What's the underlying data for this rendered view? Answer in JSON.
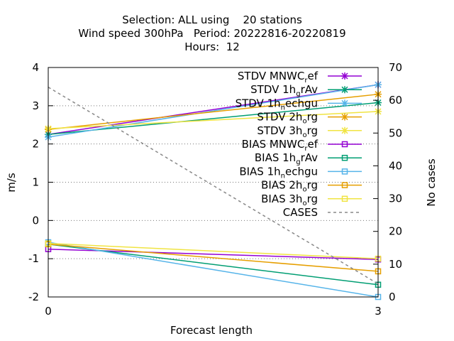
{
  "chart_data": {
    "type": "line",
    "title_lines": [
      "Selection: ALL using    20 stations",
      "Wind speed 300hPa   Period: 20222816-20220819",
      "Hours:  12"
    ],
    "xlabel": "Forecast length",
    "ylabel": "m/s",
    "y2label": "No cases",
    "xlim": [
      0,
      3
    ],
    "ylim": [
      -2,
      4
    ],
    "y2lim": [
      0,
      70
    ],
    "x_ticks": [
      0,
      3
    ],
    "y_ticks": [
      -2,
      -1,
      0,
      1,
      2,
      3,
      4
    ],
    "y2_ticks": [
      0,
      10,
      20,
      30,
      40,
      50,
      60,
      70
    ],
    "grid": "horizontal dotted",
    "legend_position": "top-right inside",
    "series": [
      {
        "name": "STDV MNWC",
        "name_sub": "r",
        "name_tail": "ef",
        "color": "#9400d3",
        "marker": "star",
        "x": [
          0,
          3
        ],
        "y": [
          2.25,
          3.55
        ]
      },
      {
        "name": "STDV 1h",
        "name_sub": "g",
        "name_tail": "rAv",
        "color": "#009e73",
        "marker": "star",
        "x": [
          0,
          3
        ],
        "y": [
          2.25,
          3.08
        ]
      },
      {
        "name": "STDV 1h",
        "name_sub": "n",
        "name_tail": "echgu",
        "color": "#56b4e9",
        "marker": "star",
        "x": [
          0,
          3
        ],
        "y": [
          2.18,
          3.55
        ]
      },
      {
        "name": "STDV 2h",
        "name_sub": "o",
        "name_tail": "rg",
        "color": "#e69f00",
        "marker": "star",
        "x": [
          0,
          3
        ],
        "y": [
          2.38,
          3.3
        ]
      },
      {
        "name": "STDV 3h",
        "name_sub": "o",
        "name_tail": "rg",
        "color": "#f0e442",
        "marker": "star",
        "x": [
          0,
          3
        ],
        "y": [
          2.4,
          2.85
        ]
      },
      {
        "name": "BIAS MNWC",
        "name_sub": "r",
        "name_tail": "ef",
        "color": "#9400d3",
        "marker": "square",
        "x": [
          0,
          3
        ],
        "y": [
          -0.75,
          -1.02
        ]
      },
      {
        "name": "BIAS 1h",
        "name_sub": "g",
        "name_tail": "rAv",
        "color": "#009e73",
        "marker": "square",
        "x": [
          0,
          3
        ],
        "y": [
          -0.62,
          -1.68
        ]
      },
      {
        "name": "BIAS 1h",
        "name_sub": "n",
        "name_tail": "echgu",
        "color": "#56b4e9",
        "marker": "square",
        "x": [
          0,
          3
        ],
        "y": [
          -0.57,
          -2.0
        ]
      },
      {
        "name": "BIAS 2h",
        "name_sub": "o",
        "name_tail": "rg",
        "color": "#e69f00",
        "marker": "square",
        "x": [
          0,
          3
        ],
        "y": [
          -0.62,
          -1.33
        ]
      },
      {
        "name": "BIAS 3h",
        "name_sub": "o",
        "name_tail": "rg",
        "color": "#f0e442",
        "marker": "square",
        "x": [
          0,
          3
        ],
        "y": [
          -0.6,
          -1.0
        ]
      },
      {
        "name": "CASES",
        "name_sub": "",
        "name_tail": "",
        "color": "#888888",
        "marker": "none",
        "dashed": true,
        "axis": "y2",
        "x": [
          0,
          3
        ],
        "y": [
          64,
          4
        ]
      }
    ]
  }
}
